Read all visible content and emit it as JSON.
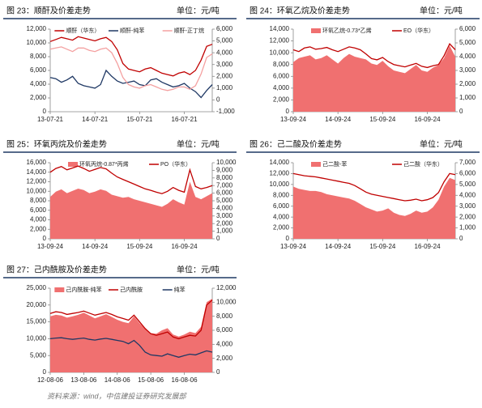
{
  "chart_data": [
    {
      "type": "combo",
      "title": "图 23：顺酐及价差走势",
      "unit": "单位：元/吨",
      "categories": [
        "13-07-21",
        null,
        null,
        null,
        null,
        null,
        null,
        null,
        "14-07-21",
        null,
        null,
        null,
        null,
        null,
        null,
        null,
        "15-07-21",
        null,
        null,
        null,
        null,
        null,
        null,
        null,
        "16-07-21",
        null,
        null,
        null,
        null,
        null
      ],
      "ylim": [
        0,
        12000
      ],
      "yticks": [
        0,
        {
          "value": 2000,
          "label": "2,000"
        },
        {
          "value": 4000,
          "label": "4,000"
        },
        {
          "value": 6000,
          "label": "6,000"
        },
        {
          "value": 8000,
          "label": "8,000"
        },
        {
          "value": 10000,
          "label": "10,000"
        },
        {
          "value": 12000,
          "label": "12,000"
        }
      ],
      "y2lim": [
        -1000,
        6000
      ],
      "y2ticks": [
        {
          "value": -1000,
          "label": "-1,000"
        },
        0,
        {
          "value": 1000,
          "label": "1,000"
        },
        {
          "value": 2000,
          "label": "2,000"
        },
        {
          "value": 3000,
          "label": "3,000"
        },
        {
          "value": 4000,
          "label": "4,000"
        },
        {
          "value": 5000,
          "label": "5,000"
        },
        {
          "value": 6000,
          "label": "6,000"
        }
      ],
      "series": [
        {
          "name": "顺酐（华东）",
          "kind": "line",
          "color": "#c00000",
          "values": [
            10200,
            10500,
            10800,
            10600,
            10400,
            10900,
            10700,
            10500,
            10300,
            10600,
            10800,
            10200,
            9000,
            7000,
            6200,
            6000,
            5800,
            6200,
            6400,
            6000,
            5600,
            5400,
            5200,
            5600,
            5800,
            5400,
            6000,
            7500,
            9500,
            9800
          ]
        },
        {
          "name": "顺酐-纯苯",
          "kind": "line",
          "axis": "y2",
          "color": "#1f3864",
          "values": [
            1900,
            1800,
            1500,
            1700,
            2000,
            1400,
            1200,
            1100,
            1000,
            1300,
            2500,
            2000,
            1600,
            1400,
            1500,
            1600,
            1300,
            1200,
            1700,
            1800,
            1500,
            1300,
            1100,
            1200,
            1400,
            1000,
            700,
            200,
            800,
            1300
          ]
        },
        {
          "name": "顺酐-正丁烷",
          "kind": "line",
          "axis": "y2",
          "color": "#f4a0a0",
          "values": [
            4300,
            4400,
            4500,
            4300,
            4100,
            4400,
            4400,
            4200,
            4100,
            4300,
            4400,
            4000,
            3100,
            1900,
            1300,
            1100,
            1000,
            1200,
            1300,
            1100,
            900,
            800,
            900,
            1100,
            1100,
            900,
            1200,
            2200,
            3600,
            3900
          ]
        }
      ]
    },
    {
      "type": "combo",
      "title": "图 24：环氧乙烷及价差走势",
      "unit": "单位：元/吨",
      "categories": [
        "13-09-24",
        null,
        null,
        null,
        null,
        null,
        null,
        null,
        "14-09-24",
        null,
        null,
        null,
        null,
        null,
        null,
        null,
        "15-09-24",
        null,
        null,
        null,
        null,
        null,
        null,
        null,
        "16-09-24",
        null,
        null,
        null,
        null,
        null
      ],
      "ylim": [
        0,
        14000
      ],
      "yticks": [
        0,
        {
          "value": 2000,
          "label": "2,000"
        },
        {
          "value": 4000,
          "label": "4,000"
        },
        {
          "value": 6000,
          "label": "6,000"
        },
        {
          "value": 8000,
          "label": "8,000"
        },
        {
          "value": 10000,
          "label": "10,000"
        },
        {
          "value": 12000,
          "label": "12,000"
        },
        {
          "value": 14000,
          "label": "14,000"
        }
      ],
      "y2lim": [
        0,
        6000
      ],
      "y2ticks": [
        0,
        {
          "value": 1000,
          "label": "1,000"
        },
        {
          "value": 2000,
          "label": "2,000"
        },
        {
          "value": 3000,
          "label": "3,000"
        },
        {
          "value": 4000,
          "label": "4,000"
        },
        {
          "value": 5000,
          "label": "5,000"
        },
        {
          "value": 6000,
          "label": "6,000"
        }
      ],
      "series": [
        {
          "name": "环氧乙烷-0.73*乙烯",
          "kind": "area",
          "axis": "y2",
          "color": "#f07070",
          "values": [
            3600,
            3900,
            4000,
            4100,
            3800,
            3900,
            4100,
            3800,
            3500,
            3900,
            4200,
            4000,
            3900,
            3800,
            3500,
            3400,
            3700,
            3300,
            3000,
            2900,
            2800,
            3100,
            3400,
            3000,
            2900,
            3200,
            3400,
            3900,
            4800,
            4000
          ]
        },
        {
          "name": "EO（华东）",
          "kind": "line",
          "color": "#c00000",
          "values": [
            10500,
            10200,
            10800,
            11000,
            10600,
            10700,
            10900,
            10500,
            10200,
            10600,
            11000,
            10800,
            10500,
            9800,
            9000,
            8800,
            9200,
            8500,
            8000,
            7800,
            7600,
            7900,
            8200,
            7700,
            7500,
            7800,
            8000,
            9500,
            11500,
            10500
          ]
        }
      ]
    },
    {
      "type": "combo",
      "title": "图 25：环氧丙烷及价差走势",
      "unit": "单位：元/吨",
      "categories": [
        "13-09-24",
        null,
        null,
        null,
        null,
        null,
        null,
        null,
        "14-09-24",
        null,
        null,
        null,
        null,
        null,
        null,
        null,
        "15-09-24",
        null,
        null,
        null,
        null,
        null,
        null,
        null,
        "16-09-24",
        null,
        null,
        null,
        null,
        null
      ],
      "ylim": [
        0,
        16000
      ],
      "yticks": [
        0,
        {
          "value": 2000,
          "label": "2,000"
        },
        {
          "value": 4000,
          "label": "4,000"
        },
        {
          "value": 6000,
          "label": "6,000"
        },
        {
          "value": 8000,
          "label": "8,000"
        },
        {
          "value": 10000,
          "label": "10,000"
        },
        {
          "value": 12000,
          "label": "12,000"
        },
        {
          "value": 14000,
          "label": "14,000"
        },
        {
          "value": 16000,
          "label": "16,000"
        }
      ],
      "y2lim": [
        0,
        10000
      ],
      "y2ticks": [
        0,
        {
          "value": 1000,
          "label": "1,000"
        },
        {
          "value": 2000,
          "label": "2,000"
        },
        {
          "value": 3000,
          "label": "3,000"
        },
        {
          "value": 4000,
          "label": "4,000"
        },
        {
          "value": 5000,
          "label": "5,000"
        },
        {
          "value": 6000,
          "label": "6,000"
        },
        {
          "value": 7000,
          "label": "7,000"
        },
        {
          "value": 8000,
          "label": "8,000"
        },
        {
          "value": 9000,
          "label": "9,000"
        },
        {
          "value": 10000,
          "label": "10,000"
        }
      ],
      "series": [
        {
          "name": "环氧丙烷-0.87*丙烯",
          "kind": "area",
          "axis": "y2",
          "color": "#f07070",
          "values": [
            5500,
            6200,
            6500,
            6000,
            6300,
            6600,
            6400,
            6000,
            6200,
            6500,
            6300,
            5800,
            5600,
            5400,
            5500,
            5200,
            5000,
            4800,
            4600,
            4400,
            4200,
            4600,
            5200,
            4800,
            4500,
            7500,
            5500,
            5200,
            5600,
            6000
          ]
        },
        {
          "name": "PO（华东）",
          "kind": "line",
          "color": "#c00000",
          "values": [
            14000,
            14800,
            15200,
            14500,
            14900,
            15300,
            14800,
            14200,
            14600,
            15000,
            14700,
            13800,
            13000,
            12500,
            12000,
            11500,
            11000,
            10500,
            10200,
            9800,
            9500,
            10000,
            10800,
            10200,
            9800,
            14500,
            11000,
            10500,
            10800,
            11200
          ]
        }
      ]
    },
    {
      "type": "combo",
      "title": "图 26：己二酸及价差走势",
      "unit": "单位：元/吨",
      "categories": [
        "13-09-24",
        null,
        null,
        null,
        null,
        null,
        null,
        null,
        "14-09-24",
        null,
        null,
        null,
        null,
        null,
        null,
        null,
        "15-09-24",
        null,
        null,
        null,
        null,
        null,
        null,
        null,
        "16-09-24",
        null,
        null,
        null,
        null,
        null
      ],
      "ylim": [
        0,
        14000
      ],
      "yticks": [
        0,
        {
          "value": 2000,
          "label": "2,000"
        },
        {
          "value": 4000,
          "label": "4,000"
        },
        {
          "value": 6000,
          "label": "6,000"
        },
        {
          "value": 8000,
          "label": "8,000"
        },
        {
          "value": 10000,
          "label": "10,000"
        },
        {
          "value": 12000,
          "label": "12,000"
        },
        {
          "value": 14000,
          "label": "14,000"
        }
      ],
      "y2lim": [
        0,
        7000
      ],
      "y2ticks": [
        0,
        {
          "value": 1000,
          "label": "1,000"
        },
        {
          "value": 2000,
          "label": "2,000"
        },
        {
          "value": 3000,
          "label": "3,000"
        },
        {
          "value": 4000,
          "label": "4,000"
        },
        {
          "value": 5000,
          "label": "5,000"
        },
        {
          "value": 6000,
          "label": "6,000"
        },
        {
          "value": 7000,
          "label": "7,000"
        }
      ],
      "series": [
        {
          "name": "己二酸-苯",
          "kind": "area",
          "axis": "y2",
          "color": "#f07070",
          "values": [
            4800,
            4600,
            4500,
            4400,
            4400,
            4300,
            4100,
            4000,
            3900,
            3800,
            3700,
            3500,
            3200,
            2900,
            2700,
            2500,
            2600,
            2800,
            2400,
            2200,
            2100,
            2300,
            2600,
            2400,
            2500,
            2900,
            3600,
            4800,
            5600,
            5400
          ]
        },
        {
          "name": "己二酸（华东）",
          "kind": "line",
          "color": "#c00000",
          "values": [
            12000,
            11800,
            11600,
            11500,
            11400,
            11200,
            11000,
            10800,
            10600,
            10400,
            10200,
            9800,
            9200,
            8600,
            8200,
            8000,
            7800,
            7600,
            7400,
            7200,
            7000,
            7100,
            7300,
            7000,
            7200,
            7600,
            8500,
            10500,
            12000,
            11800
          ]
        }
      ]
    },
    {
      "type": "combo",
      "title": "图 27：己内酰胺及价差走势",
      "unit": "单位：元/吨",
      "categories": [
        "12-08-06",
        null,
        null,
        null,
        null,
        null,
        "13-08-06",
        null,
        null,
        null,
        null,
        null,
        "14-08-06",
        null,
        null,
        null,
        null,
        null,
        "15-08-06",
        null,
        null,
        null,
        null,
        null,
        "16-08-06",
        null,
        null,
        null,
        null,
        null
      ],
      "ylim": [
        0,
        25000
      ],
      "yticks": [
        0,
        {
          "value": 5000,
          "label": "5,000"
        },
        {
          "value": 10000,
          "label": "10,000"
        },
        {
          "value": 15000,
          "label": "15,000"
        },
        {
          "value": 20000,
          "label": "20,000"
        },
        {
          "value": 25000,
          "label": "25,000"
        }
      ],
      "y2lim": [
        0,
        12000
      ],
      "y2ticks": [
        0,
        {
          "value": 2000,
          "label": "2,000"
        },
        {
          "value": 4000,
          "label": "4,000"
        },
        {
          "value": 6000,
          "label": "6,000"
        },
        {
          "value": 8000,
          "label": "8,000"
        },
        {
          "value": 10000,
          "label": "10,000"
        },
        {
          "value": 12000,
          "label": "12,000"
        }
      ],
      "series": [
        {
          "name": "己内酰胺-纯苯",
          "kind": "area",
          "axis": "y2",
          "color": "#f07070",
          "values": [
            8000,
            8200,
            8100,
            7800,
            8000,
            8200,
            8500,
            8100,
            7700,
            8000,
            8300,
            7900,
            7500,
            7200,
            7000,
            8000,
            7000,
            6200,
            5600,
            5500,
            6000,
            6300,
            5400,
            5100,
            5400,
            5800,
            5600,
            6500,
            10000,
            10500
          ]
        },
        {
          "name": "己内酰胺",
          "kind": "line",
          "color": "#c00000",
          "values": [
            17500,
            18000,
            17800,
            17200,
            17500,
            17800,
            18200,
            17600,
            17000,
            17400,
            17800,
            17200,
            16500,
            16000,
            15500,
            17000,
            15000,
            13000,
            11500,
            11000,
            11500,
            12000,
            10500,
            10000,
            10500,
            11000,
            10800,
            12500,
            20000,
            21500
          ]
        },
        {
          "name": "纯苯",
          "kind": "line",
          "color": "#1f3864",
          "values": [
            10000,
            10200,
            10300,
            10000,
            9800,
            10000,
            10200,
            9800,
            9600,
            9900,
            10100,
            9800,
            9500,
            9200,
            8500,
            9500,
            8000,
            6000,
            5200,
            5000,
            4800,
            5500,
            5000,
            4500,
            5000,
            5400,
            5200,
            5800,
            6400,
            6000
          ]
        }
      ]
    }
  ],
  "source": "资料来源：wind，中信建投证券研究发展部"
}
